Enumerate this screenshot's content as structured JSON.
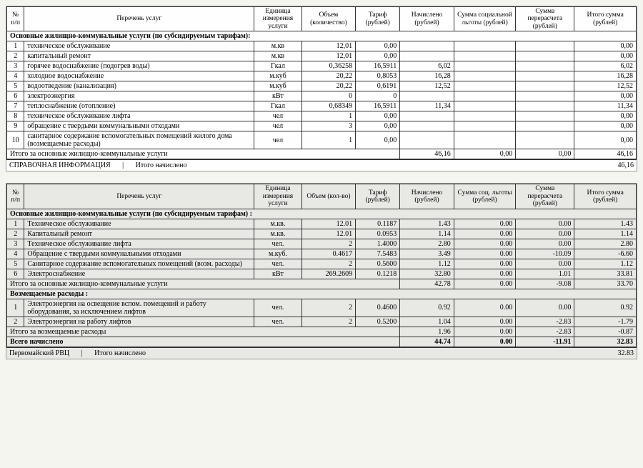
{
  "headers": {
    "np": "№ п/п",
    "name": "Перечень услуг",
    "unit": "Единица измерения услуги",
    "vol1": "Объем (количество)",
    "vol2": "Объем (кол-во)",
    "tariff": "Тариф (рублей)",
    "charged": "Начислено (рублей)",
    "benefit1": "Сумма социальной льготы (рублей)",
    "benefit2": "Сумма соц. льготы (рублей)",
    "recalc": "Сумма перерасчета (рублей)",
    "total": "Итого сумма (рублей)"
  },
  "sections": {
    "main": "Основные жилищно-коммунальные услуги (по субсидируемым тарифам):",
    "main2": "Основные жилищно-коммунальные услуги (по субсидируемым тарифам) :",
    "reimb": "Возмещаемые расходы :",
    "totalMain": "Итого за основные жилищно-коммунальные услуги",
    "totalReimb": "Итого за возмещаемые расходы",
    "totalAll": "Всего начислено",
    "ref": "СПРАВОЧНАЯ ИНФОРМАЦИЯ",
    "refTot": "Итого начислено",
    "org": "Первомайский РВЦ"
  },
  "t1": {
    "rows": [
      {
        "n": "1",
        "name": "техническое обслуживание",
        "unit": "м.кв",
        "vol": "12,01",
        "tar": "0,00",
        "ch": "",
        "ben": "",
        "rec": "",
        "tot": "0,00"
      },
      {
        "n": "2",
        "name": "капитальный ремонт",
        "unit": "м.кв",
        "vol": "12,01",
        "tar": "0,00",
        "ch": "",
        "ben": "",
        "rec": "",
        "tot": "0,00"
      },
      {
        "n": "3",
        "name": "горячее водоснабжение (подогрев воды)",
        "unit": "Гкал",
        "vol": "0,36258",
        "tar": "16,5911",
        "ch": "6,02",
        "ben": "",
        "rec": "",
        "tot": "6,02"
      },
      {
        "n": "4",
        "name": "холодное водоснабжение",
        "unit": "м.куб",
        "vol": "20,22",
        "tar": "0,8053",
        "ch": "16,28",
        "ben": "",
        "rec": "",
        "tot": "16,28"
      },
      {
        "n": "5",
        "name": "водоотведение (канализация)",
        "unit": "м.куб",
        "vol": "20,22",
        "tar": "0,6191",
        "ch": "12,52",
        "ben": "",
        "rec": "",
        "tot": "12,52"
      },
      {
        "n": "6",
        "name": "электроэнергия",
        "unit": "кВт",
        "vol": "0",
        "tar": "0",
        "ch": "",
        "ben": "",
        "rec": "",
        "tot": "0,00"
      },
      {
        "n": "7",
        "name": "теплоснабжение (отопление)",
        "unit": "Гкал",
        "vol": "0,68349",
        "tar": "16,5911",
        "ch": "11,34",
        "ben": "",
        "rec": "",
        "tot": "11,34"
      },
      {
        "n": "8",
        "name": "техническое обслуживание лифта",
        "unit": "чел",
        "vol": "1",
        "tar": "0,00",
        "ch": "",
        "ben": "",
        "rec": "",
        "tot": "0,00"
      },
      {
        "n": "9",
        "name": "обращение с твердыми коммунальными отходами",
        "unit": "чел",
        "vol": "3",
        "tar": "0,00",
        "ch": "",
        "ben": "",
        "rec": "",
        "tot": "0,00"
      },
      {
        "n": "10",
        "name": "санитарное содержание вспомогательных помещений жилого дома (возмещаемые расходы)",
        "unit": "чел",
        "vol": "1",
        "tar": "0,00",
        "ch": "",
        "ben": "",
        "rec": "",
        "tot": "0,00"
      }
    ],
    "totals": {
      "ch": "46,16",
      "ben": "0,00",
      "rec": "0,00",
      "tot": "46,16"
    },
    "refTotal": "46,16"
  },
  "t2": {
    "rows": [
      {
        "n": "1",
        "name": "Техническое обслуживание",
        "unit": "м.кв.",
        "vol": "12.01",
        "tar": "0.1187",
        "ch": "1.43",
        "ben": "0.00",
        "rec": "0.00",
        "tot": "1.43"
      },
      {
        "n": "2",
        "name": "Капитальный ремонт",
        "unit": "м.кв.",
        "vol": "12.01",
        "tar": "0.0953",
        "ch": "1.14",
        "ben": "0.00",
        "rec": "0.00",
        "tot": "1.14"
      },
      {
        "n": "3",
        "name": "Техническое обслуживание лифта",
        "unit": "чел.",
        "vol": "2",
        "tar": "1.4000",
        "ch": "2.80",
        "ben": "0.00",
        "rec": "0.00",
        "tot": "2.80"
      },
      {
        "n": "4",
        "name": "Обращение с твердыми коммунальными отходами",
        "unit": "м.куб.",
        "vol": "0.4617",
        "tar": "7.5483",
        "ch": "3.49",
        "ben": "0.00",
        "rec": "-10.09",
        "tot": "-6.60"
      },
      {
        "n": "5",
        "name": "Санитарное содержание вспомогательных помещений (возм. расходы)",
        "unit": "чел.",
        "vol": "2",
        "tar": "0.5600",
        "ch": "1.12",
        "ben": "0.00",
        "rec": "0.00",
        "tot": "1.12"
      },
      {
        "n": "6",
        "name": "Электроснабжение",
        "unit": "кВт",
        "vol": "269.2609",
        "tar": "0.1218",
        "ch": "32.80",
        "ben": "0.00",
        "rec": "1.01",
        "tot": "33.81"
      }
    ],
    "totalMain": {
      "ch": "42.78",
      "ben": "0.00",
      "rec": "-9.08",
      "tot": "33.70"
    },
    "reimb": [
      {
        "n": "1",
        "name": "Электроэнергия на освещение вспом. помещений и работу оборудования, за исключением лифтов",
        "unit": "чел.",
        "vol": "2",
        "tar": "0.4600",
        "ch": "0.92",
        "ben": "0.00",
        "rec": "0.00",
        "tot": "0.92"
      },
      {
        "n": "2",
        "name": "Электроэнергия на работу лифтов",
        "unit": "чел.",
        "vol": "2",
        "tar": "0.5200",
        "ch": "1.04",
        "ben": "0.00",
        "rec": "-2.83",
        "tot": "-1.79"
      }
    ],
    "totalReimb": {
      "ch": "1.96",
      "ben": "0.00",
      "rec": "-2.83",
      "tot": "-0.87"
    },
    "totalAll": {
      "ch": "44.74",
      "ben": "0.00",
      "rec": "-11.91",
      "tot": "32.83"
    },
    "refTotal": "32.83"
  }
}
